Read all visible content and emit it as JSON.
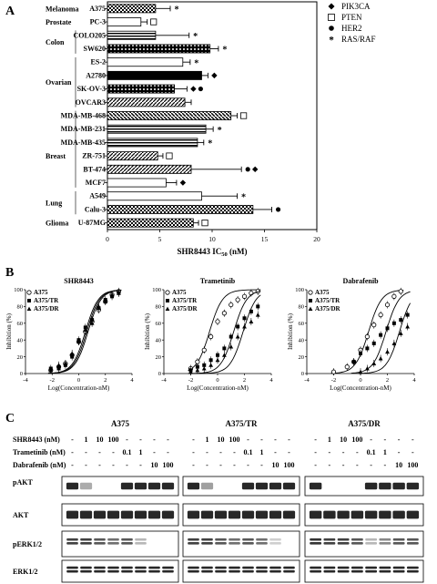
{
  "panels": {
    "a": "A",
    "b": "B",
    "c": "C"
  },
  "chart_data": [
    {
      "type": "bar",
      "orientation": "horizontal",
      "title": "",
      "xlabel": "SHR8443 IC50 (nM)",
      "xlabel_main": "SHR8443 IC",
      "xlabel_sub": "50",
      "xlabel_unit": " (nM)",
      "xlim": [
        0,
        20
      ],
      "xticks": [
        "0",
        "5",
        "10",
        "15",
        "20"
      ],
      "categories": [
        "A375",
        "PC-3",
        "COLO205",
        "SW620",
        "ES-2",
        "A2780",
        "SK-OV-3",
        "OVCAR3",
        "MDA-MB-468",
        "MDA-MB-231",
        "MDA-MB-435",
        "ZR-751",
        "BT-474",
        "MCF7",
        "A549",
        "Calu-3",
        "U-87MG"
      ],
      "values": [
        4.6,
        3.2,
        4.6,
        9.8,
        7.2,
        9.0,
        6.4,
        7.4,
        11.8,
        9.4,
        8.6,
        4.8,
        8.0,
        5.6,
        9.0,
        13.9,
        8.2
      ],
      "errors": [
        1.4,
        0.6,
        3.2,
        0.8,
        0.7,
        0.6,
        1.2,
        0.6,
        0.6,
        0.7,
        0.6,
        0.5,
        4.8,
        1.0,
        3.4,
        1.8,
        0.5
      ],
      "patterns": [
        "checker",
        "white",
        "hstripe",
        "dots",
        "white",
        "black",
        "dots",
        "diag",
        "diag2",
        "hstripe",
        "hstripe",
        "diag",
        "diag",
        "white",
        "white",
        "checker",
        "checker"
      ],
      "markers": [
        [
          "*"
        ],
        [
          "square"
        ],
        [
          "*"
        ],
        [
          "*"
        ],
        [
          "*"
        ],
        [
          "diamond"
        ],
        [
          "diamond",
          "circle"
        ],
        [],
        [
          "square"
        ],
        [
          "*"
        ],
        [
          "*"
        ],
        [
          "square"
        ],
        [
          "circle",
          "diamond"
        ],
        [
          "diamond"
        ],
        [
          "*"
        ],
        [
          "circle"
        ],
        [
          "square"
        ]
      ],
      "groups": [
        {
          "name": "Melanoma",
          "from": 0,
          "to": 0
        },
        {
          "name": "Prostate",
          "from": 1,
          "to": 1
        },
        {
          "name": "Colon",
          "from": 2,
          "to": 3
        },
        {
          "name": "Ovarian",
          "from": 4,
          "to": 7
        },
        {
          "name": "Breast",
          "from": 8,
          "to": 14
        },
        {
          "name": "Lung",
          "from": 14,
          "to": 15
        },
        {
          "name": "Glioma",
          "from": 16,
          "to": 16
        }
      ],
      "legend": [
        {
          "symbol": "diamond",
          "label": "PIK3CA"
        },
        {
          "symbol": "square",
          "label": "PTEN"
        },
        {
          "symbol": "circle",
          "label": "HER2"
        },
        {
          "symbol": "*",
          "label": "RAS/RAF"
        }
      ]
    },
    {
      "type": "scatter",
      "title": "SHR8443",
      "xlabel": "Log(Concentration-nM)",
      "ylabel": "Inhibition (%)",
      "xlim": [
        -4,
        4
      ],
      "ylim": [
        0,
        100
      ],
      "xticks": [
        "-4",
        "-2",
        "0",
        "2",
        "4"
      ],
      "yticks": [
        "0",
        "20",
        "40",
        "60",
        "80",
        "100"
      ],
      "series": [
        {
          "name": "A375",
          "marker": "open-circle",
          "x": [
            -2.1,
            -1.5,
            -1.0,
            -0.5,
            0,
            0.5,
            1.0,
            1.5,
            2.0,
            2.5,
            3.0
          ],
          "y": [
            4,
            8,
            12,
            22,
            38,
            50,
            62,
            76,
            86,
            94,
            98
          ],
          "ec50": 0.5
        },
        {
          "name": "A375/TR",
          "marker": "filled-square",
          "x": [
            -2.1,
            -1.5,
            -1.0,
            -0.5,
            0,
            0.5,
            1.0,
            1.5,
            2.0,
            2.5,
            3.0
          ],
          "y": [
            6,
            6,
            10,
            20,
            40,
            55,
            64,
            78,
            88,
            92,
            96
          ],
          "ec50": 0.6
        },
        {
          "name": "A375/DR",
          "marker": "filled-triangle",
          "x": [
            -2.1,
            -1.5,
            -1.0,
            -0.5,
            0,
            0.5,
            1.0,
            1.5,
            2.0,
            2.5,
            3.0
          ],
          "y": [
            4,
            10,
            12,
            24,
            38,
            52,
            60,
            80,
            86,
            94,
            96
          ],
          "ec50": 0.7
        }
      ]
    },
    {
      "type": "scatter",
      "title": "Trametinib",
      "xlabel": "Log(Concentration-nM)",
      "ylabel": "Inhibition (%)",
      "xlim": [
        -4,
        4
      ],
      "ylim": [
        0,
        100
      ],
      "xticks": [
        "-4",
        "-2",
        "0",
        "2",
        "4"
      ],
      "yticks": [
        "0",
        "20",
        "40",
        "60",
        "80",
        "100"
      ],
      "series": [
        {
          "name": "A375",
          "marker": "open-circle",
          "x": [
            -2.0,
            -1.5,
            -1.0,
            -0.5,
            0,
            0.5,
            1.0,
            1.5,
            2.0,
            2.5,
            3.0
          ],
          "y": [
            6,
            14,
            28,
            44,
            62,
            72,
            82,
            88,
            92,
            96,
            98
          ],
          "ec50": -0.6
        },
        {
          "name": "A375/TR",
          "marker": "filled-square",
          "x": [
            -2.0,
            -1.5,
            -1.0,
            -0.5,
            0,
            0.5,
            1.0,
            1.5,
            2.0,
            2.5,
            3.0
          ],
          "y": [
            4,
            8,
            10,
            16,
            22,
            30,
            44,
            56,
            66,
            74,
            80
          ],
          "ec50": 1.2
        },
        {
          "name": "A375/DR",
          "marker": "filled-triangle",
          "x": [
            -2.0,
            -1.5,
            -1.0,
            -0.5,
            0,
            0.5,
            1.0,
            1.5,
            2.0,
            2.5,
            3.0
          ],
          "y": [
            2,
            4,
            6,
            10,
            16,
            22,
            32,
            44,
            56,
            62,
            70
          ],
          "ec50": 1.9
        }
      ]
    },
    {
      "type": "scatter",
      "title": "Dabrafenib",
      "xlabel": "Log(Concentration-nM)",
      "ylabel": "Inhibition (%)",
      "xlim": [
        -4,
        4
      ],
      "ylim": [
        0,
        100
      ],
      "xticks": [
        "-4",
        "-2",
        "0",
        "2",
        "4"
      ],
      "yticks": [
        "0",
        "20",
        "40",
        "60",
        "80",
        "100"
      ],
      "series": [
        {
          "name": "A375",
          "marker": "open-circle",
          "x": [
            -2.0,
            -1.0,
            -0.5,
            0,
            0.5,
            1.0,
            1.5,
            2.0,
            2.5,
            3.0
          ],
          "y": [
            2,
            8,
            14,
            28,
            44,
            58,
            70,
            82,
            92,
            98
          ],
          "ec50": 0.6
        },
        {
          "name": "A375/TR",
          "marker": "filled-square",
          "x": [
            -0.5,
            0,
            0.5,
            1.0,
            1.5,
            2.0,
            2.5,
            3.0,
            3.5
          ],
          "y": [
            14,
            24,
            30,
            36,
            46,
            54,
            60,
            64,
            70
          ],
          "ec50": 1.9
        },
        {
          "name": "A375/DR",
          "marker": "filled-triangle",
          "x": [
            0,
            0.5,
            1.0,
            1.5,
            2.0,
            2.5,
            3.0,
            3.5
          ],
          "y": [
            2,
            6,
            12,
            18,
            26,
            36,
            48,
            56
          ],
          "ec50": 2.9
        }
      ]
    }
  ],
  "western": {
    "cells": [
      "A375",
      "A375/TR",
      "A375/DR"
    ],
    "treatment_labels": [
      "SHR8443 (nM)",
      "Trametinib (nM)",
      "Dabrafenib (nM)"
    ],
    "lanes": [
      [
        "-",
        "1",
        "10",
        "100",
        "-",
        "-",
        "-",
        "-"
      ],
      [
        "-",
        "-",
        "-",
        "-",
        "0.1",
        "1",
        "-",
        "-"
      ],
      [
        "-",
        "-",
        "-",
        "-",
        "-",
        "-",
        "10",
        "100"
      ]
    ],
    "rows": [
      "pAKT",
      "AKT",
      "pERK1/2",
      "ERK1/2"
    ],
    "intensity": {
      "A375": {
        "pAKT": [
          0.9,
          0.35,
          0,
          0,
          0.9,
          0.9,
          0.9,
          0.9
        ],
        "AKT": [
          0.9,
          0.9,
          0.9,
          0.9,
          0.9,
          0.9,
          0.9,
          0.9
        ],
        "pERK1/2": [
          0.8,
          0.8,
          0.7,
          0.6,
          0.7,
          0.3,
          0,
          0
        ],
        "ERK1/2": [
          0.9,
          0.9,
          0.9,
          0.9,
          0.9,
          0.9,
          0.9,
          0.9
        ]
      },
      "A375/TR": {
        "pAKT": [
          0.9,
          0.4,
          0,
          0,
          0.9,
          0.9,
          0.9,
          0.9
        ],
        "AKT": [
          0.9,
          0.9,
          0.9,
          0.9,
          0.9,
          0.9,
          0.9,
          0.9
        ],
        "pERK1/2": [
          0.8,
          0.8,
          0.7,
          0.6,
          0.7,
          0.6,
          0.2,
          0
        ],
        "ERK1/2": [
          0.9,
          0.9,
          0.9,
          0.9,
          0.9,
          0.9,
          0.9,
          0.9
        ]
      },
      "A375/DR": {
        "pAKT": [
          0.9,
          0,
          0,
          0,
          0.9,
          0.9,
          0.9,
          0.9
        ],
        "AKT": [
          0.9,
          0.9,
          0.9,
          0.9,
          0.9,
          0.9,
          0.9,
          0.9
        ],
        "pERK1/2": [
          0.85,
          0.8,
          0.8,
          0.7,
          0.3,
          0.5,
          0.7,
          0.7
        ],
        "ERK1/2": [
          0.9,
          0.9,
          0.9,
          0.9,
          0.9,
          0.9,
          0.9,
          0.9
        ]
      }
    }
  }
}
